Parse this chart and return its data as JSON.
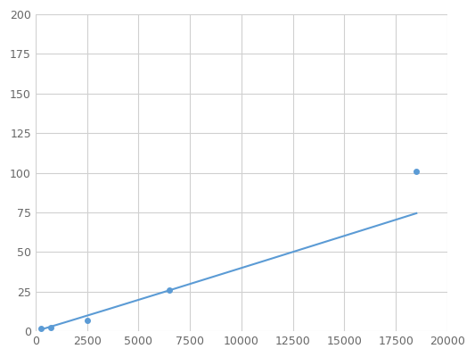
{
  "x": [
    250,
    750,
    2500,
    6500,
    18500
  ],
  "y": [
    1.5,
    2.0,
    6.5,
    26,
    101
  ],
  "line_color": "#5b9bd5",
  "marker_color": "#5b9bd5",
  "marker_size": 4,
  "line_width": 1.5,
  "xlim": [
    0,
    20000
  ],
  "ylim": [
    0,
    200
  ],
  "xticks": [
    0,
    2500,
    5000,
    7500,
    10000,
    12500,
    15000,
    17500,
    20000
  ],
  "yticks": [
    0,
    25,
    50,
    75,
    100,
    125,
    150,
    175,
    200
  ],
  "grid_color": "#d0d0d0",
  "background_color": "#ffffff",
  "tick_fontsize": 9,
  "figsize": [
    5.33,
    4.0
  ],
  "dpi": 100
}
